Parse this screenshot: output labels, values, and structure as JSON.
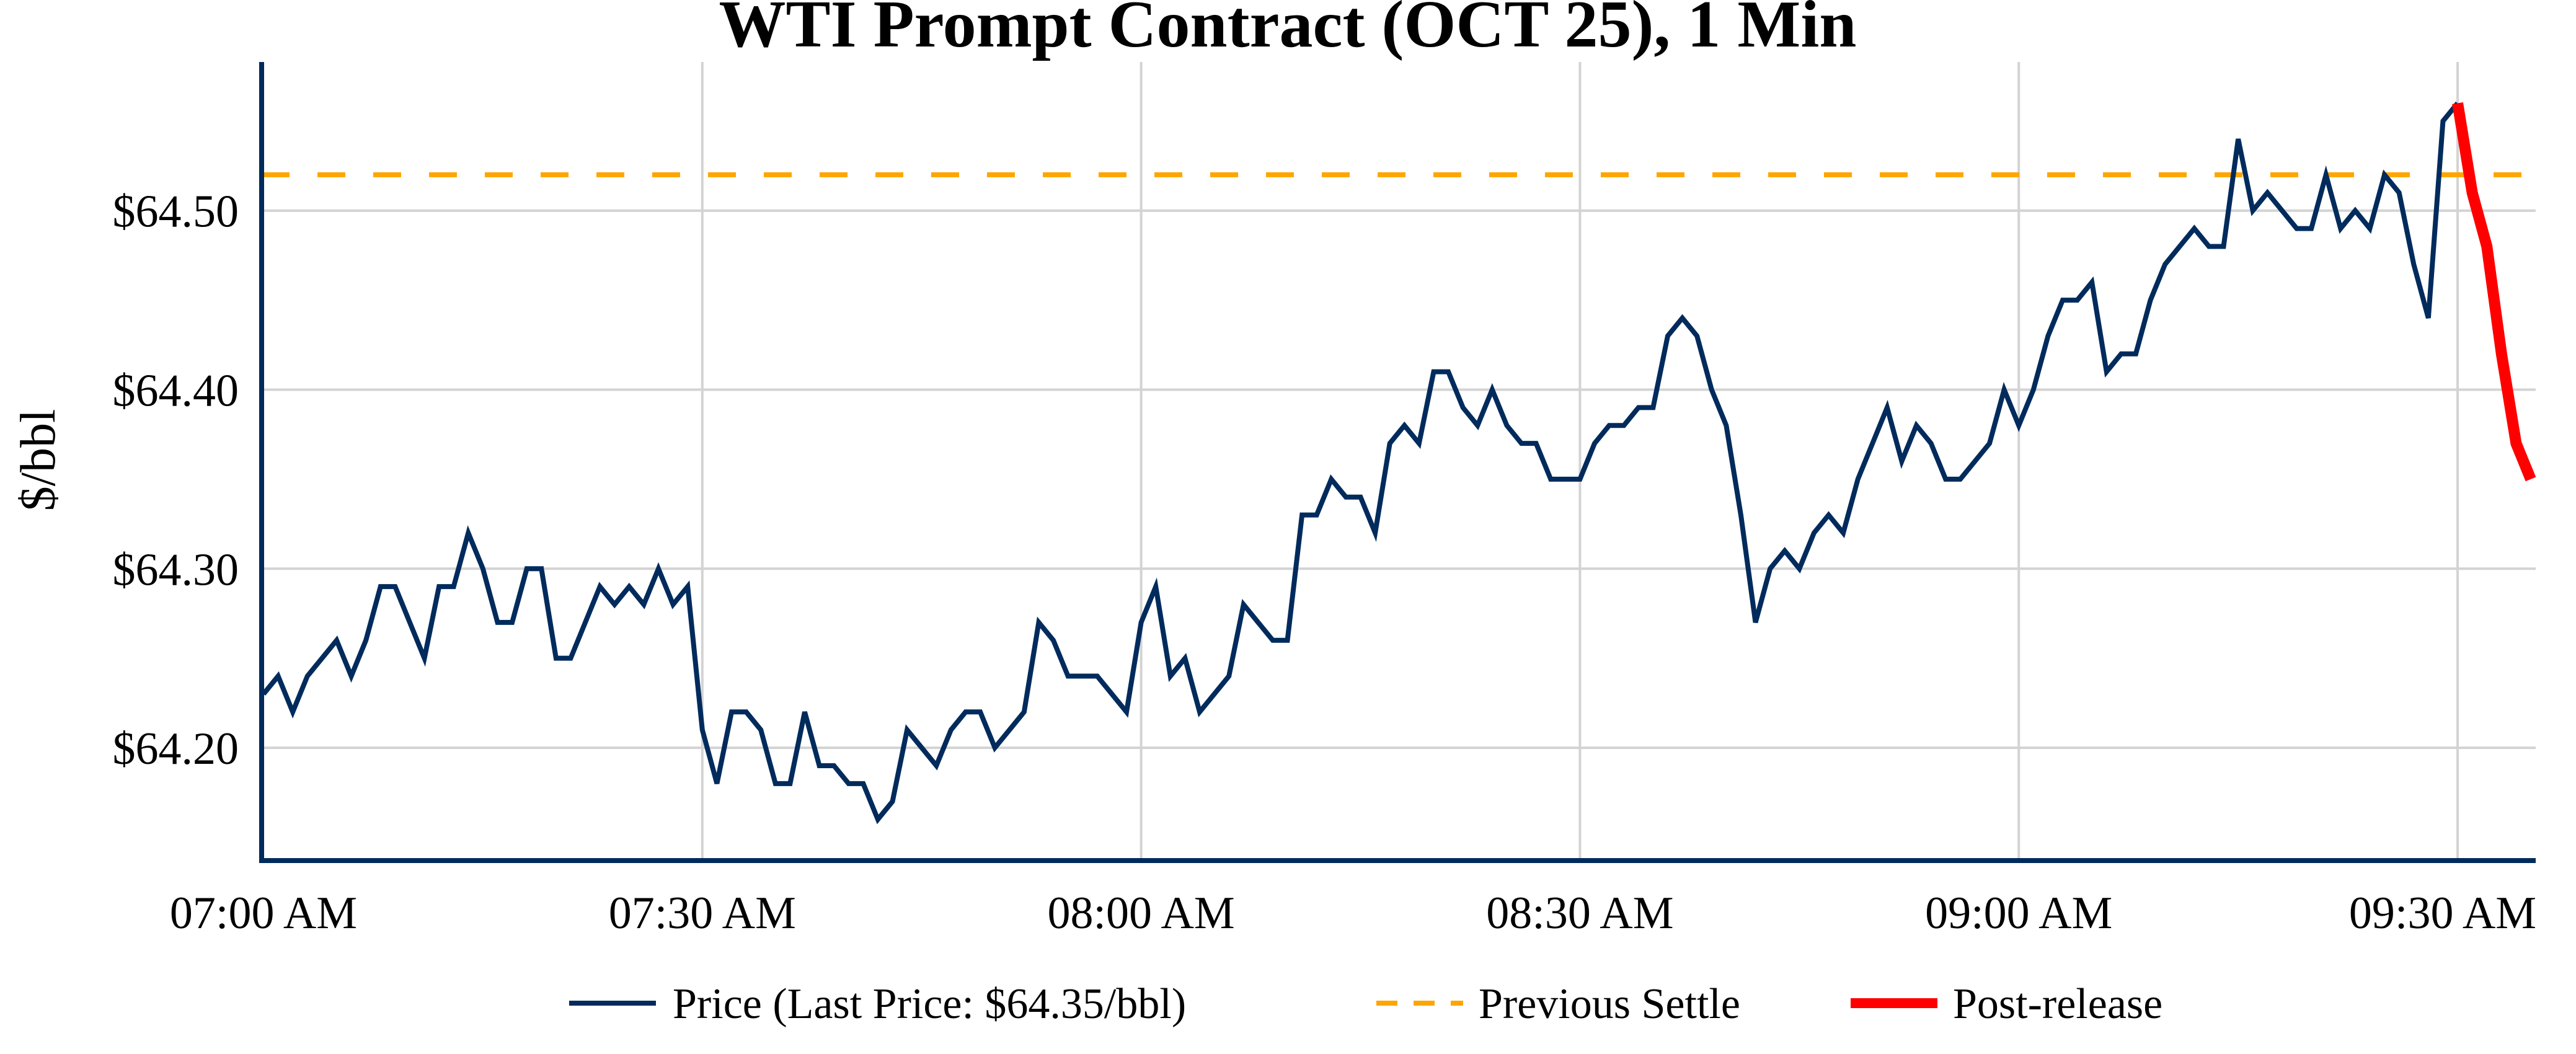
{
  "chart_data": {
    "type": "line",
    "title": "WTI Prompt Contract (OCT 25), 1 Min",
    "xlabel": "",
    "ylabel": "$/bbl",
    "x_start": "07:00 AM",
    "x_interval_minutes": 1,
    "xlim_minutes": [
      0,
      155
    ],
    "ylim": [
      64.137,
      64.583
    ],
    "grid": true,
    "legend_position": "bottom",
    "x_ticks": [
      {
        "minute": 0,
        "label": "07:00 AM"
      },
      {
        "minute": 30,
        "label": "07:30 AM"
      },
      {
        "minute": 60,
        "label": "08:00 AM"
      },
      {
        "minute": 90,
        "label": "08:30 AM"
      },
      {
        "minute": 120,
        "label": "09:00 AM"
      },
      {
        "minute": 150,
        "label": "09:30 AM"
      }
    ],
    "y_ticks": [
      {
        "value": 64.2,
        "label": "$64.20"
      },
      {
        "value": 64.3,
        "label": "$64.30"
      },
      {
        "value": 64.4,
        "label": "$64.40"
      },
      {
        "value": 64.5,
        "label": "$64.50"
      }
    ],
    "series": [
      {
        "name": "Price (Last Price: $64.35/bbl)",
        "color": "#002b5c",
        "style": "solid",
        "start_minute": 0,
        "values": [
          64.23,
          64.24,
          64.22,
          64.24,
          64.25,
          64.26,
          64.24,
          64.26,
          64.29,
          64.29,
          64.27,
          64.25,
          64.29,
          64.29,
          64.32,
          64.3,
          64.27,
          64.27,
          64.3,
          64.3,
          64.25,
          64.25,
          64.27,
          64.29,
          64.28,
          64.29,
          64.28,
          64.3,
          64.28,
          64.29,
          64.21,
          64.18,
          64.22,
          64.22,
          64.21,
          64.18,
          64.18,
          64.22,
          64.19,
          64.19,
          64.18,
          64.18,
          64.16,
          64.17,
          64.21,
          64.2,
          64.19,
          64.21,
          64.22,
          64.22,
          64.2,
          64.21,
          64.22,
          64.27,
          64.26,
          64.24,
          64.24,
          64.24,
          64.23,
          64.22,
          64.27,
          64.29,
          64.24,
          64.25,
          64.22,
          64.23,
          64.24,
          64.28,
          64.27,
          64.26,
          64.26,
          64.33,
          64.33,
          64.35,
          64.34,
          64.34,
          64.32,
          64.37,
          64.38,
          64.37,
          64.41,
          64.41,
          64.39,
          64.38,
          64.4,
          64.38,
          64.37,
          64.37,
          64.35,
          64.35,
          64.35,
          64.37,
          64.38,
          64.38,
          64.39,
          64.39,
          64.43,
          64.44,
          64.43,
          64.4,
          64.38,
          64.33,
          64.27,
          64.3,
          64.31,
          64.3,
          64.32,
          64.33,
          64.32,
          64.35,
          64.37,
          64.39,
          64.36,
          64.38,
          64.37,
          64.35,
          64.35,
          64.36,
          64.37,
          64.4,
          64.38,
          64.4,
          64.43,
          64.45,
          64.45,
          64.46,
          64.41,
          64.42,
          64.42,
          64.45,
          64.47,
          64.48,
          64.49,
          64.48,
          64.48,
          64.54,
          64.5,
          64.51,
          64.5,
          64.49,
          64.49,
          64.52,
          64.49,
          64.5,
          64.49,
          64.52,
          64.51,
          64.47,
          64.44,
          64.55,
          64.56
        ]
      },
      {
        "name": "Previous Settle",
        "color": "#ffa500",
        "style": "dashed",
        "value": 64.52
      },
      {
        "name": "Post-release",
        "color": "#ff0000",
        "style": "solid-thick",
        "start_minute": 150,
        "values": [
          64.56,
          64.51,
          64.48,
          64.42,
          64.37,
          64.35
        ]
      }
    ]
  }
}
